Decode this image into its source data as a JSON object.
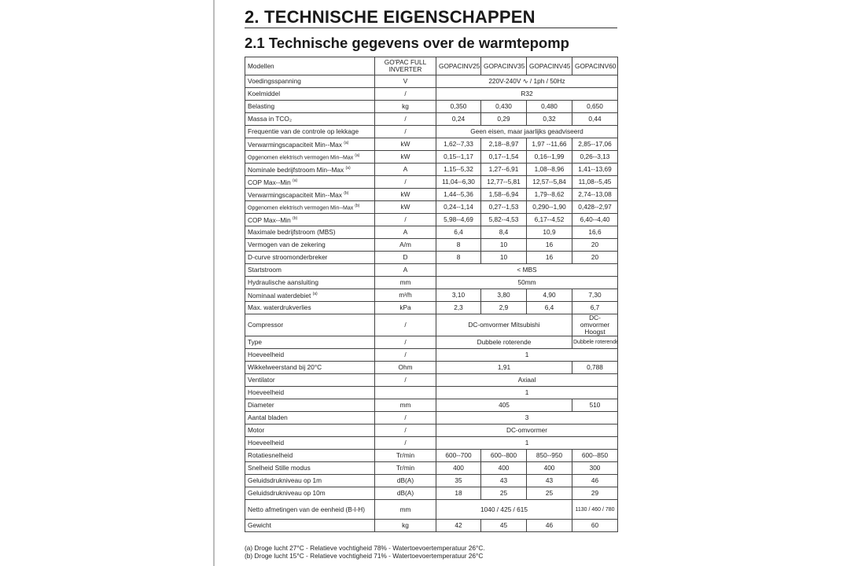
{
  "heading": "2. TECHNISCHE EIGENSCHAPPEN",
  "subheading": "2.1 Technische gegevens over de warmtepomp",
  "table": {
    "header": {
      "label": "Modellen",
      "unit": "GO'PAC FULL INVERTER",
      "models": [
        "GOPACINV25",
        "GOPACINV35",
        "GOPACINV45",
        "GOPACINV60"
      ]
    },
    "rows": [
      {
        "label": "Voedingsspanning",
        "unit": "V",
        "cells": [
          {
            "v": "220V-240V ∿ / 1ph / 50Hz",
            "span": 4
          }
        ]
      },
      {
        "label": "Koelmiddel",
        "unit": "/",
        "cells": [
          {
            "v": "R32",
            "span": 4
          }
        ]
      },
      {
        "label": "Belasting",
        "unit": "kg",
        "cells": [
          {
            "v": "0,350"
          },
          {
            "v": "0,430"
          },
          {
            "v": "0,480"
          },
          {
            "v": "0,650"
          }
        ]
      },
      {
        "label": "Massa in TCO₂",
        "unit": "/",
        "cells": [
          {
            "v": "0,24"
          },
          {
            "v": "0,29"
          },
          {
            "v": "0,32"
          },
          {
            "v": "0,44"
          }
        ]
      },
      {
        "label": "Frequentie van de controle op lekkage",
        "unit": "/",
        "cells": [
          {
            "v": "Geen eisen, maar jaarlijks geadviseerd",
            "span": 4
          }
        ]
      },
      {
        "label": "Verwarmingscapaciteit Min--Max",
        "note": "(a)",
        "unit": "kW",
        "cells": [
          {
            "v": "1,62--7,33"
          },
          {
            "v": "2,18--8,97"
          },
          {
            "v": "1,97 --11,66"
          },
          {
            "v": "2,85--17,06"
          }
        ]
      },
      {
        "label": "Opgenomen elektrisch vermogen Min--Max",
        "note": "(a)",
        "small": true,
        "unit": "kW",
        "cells": [
          {
            "v": "0,15--1,17"
          },
          {
            "v": "0,17--1,54"
          },
          {
            "v": "0,16--1,99"
          },
          {
            "v": "0,26--3,13"
          }
        ]
      },
      {
        "label": "Nominale bedrijfstroom Min--Max",
        "note": "(a)",
        "unit": "A",
        "cells": [
          {
            "v": "1,15--5,32"
          },
          {
            "v": "1,27--6,91"
          },
          {
            "v": "1,08--8,96"
          },
          {
            "v": "1,41--13,69"
          }
        ]
      },
      {
        "label": "COP Max--Min",
        "note": "(a)",
        "unit": "/",
        "cells": [
          {
            "v": "11,04--6,30"
          },
          {
            "v": "12,77--5,81"
          },
          {
            "v": "12,57--5,84"
          },
          {
            "v": "11,08--5,45"
          }
        ]
      },
      {
        "label": "Verwarmingscapaciteit Min--Max",
        "note": "(b)",
        "unit": "kW",
        "cells": [
          {
            "v": "1,44--5,36"
          },
          {
            "v": "1,58--6,94"
          },
          {
            "v": "1,79--8,62"
          },
          {
            "v": "2,74--13,08"
          }
        ]
      },
      {
        "label": "Opgenomen elektrisch vermogen Min--Max",
        "note": "(b)",
        "small": true,
        "unit": "kW",
        "cells": [
          {
            "v": "0,24--1,14"
          },
          {
            "v": "0,27--1,53"
          },
          {
            "v": "0,290--1,90"
          },
          {
            "v": "0,428--2,97"
          }
        ]
      },
      {
        "label": "COP Max--Min",
        "note": "(b)",
        "unit": "/",
        "cells": [
          {
            "v": "5,98--4,69"
          },
          {
            "v": "5,82--4,53"
          },
          {
            "v": "6,17--4,52"
          },
          {
            "v": "6,40--4,40"
          }
        ]
      },
      {
        "label": "Maximale bedrijfstroom (MBS)",
        "unit": "A",
        "cells": [
          {
            "v": "6,4"
          },
          {
            "v": "8,4"
          },
          {
            "v": "10,9"
          },
          {
            "v": "16,6"
          }
        ]
      },
      {
        "label": "Vermogen van de zekering",
        "unit": "A/m",
        "cells": [
          {
            "v": "8"
          },
          {
            "v": "10"
          },
          {
            "v": "16"
          },
          {
            "v": "20"
          }
        ]
      },
      {
        "label": "D-curve stroomonderbreker",
        "unit": "D",
        "cells": [
          {
            "v": "8"
          },
          {
            "v": "10"
          },
          {
            "v": "16"
          },
          {
            "v": "20"
          }
        ]
      },
      {
        "label": "Startstroom",
        "unit": "A",
        "cells": [
          {
            "v": "< MBS",
            "span": 4
          }
        ]
      },
      {
        "label": "Hydraulische aansluiting",
        "unit": "mm",
        "cells": [
          {
            "v": "50mm",
            "span": 4
          }
        ]
      },
      {
        "label": "Nominaal waterdebiet",
        "note": "(a)",
        "unit": "m³/h",
        "cells": [
          {
            "v": "3,10"
          },
          {
            "v": "3,80"
          },
          {
            "v": "4,90"
          },
          {
            "v": "7,30"
          }
        ]
      },
      {
        "label": "Max. waterdrukverlies",
        "unit": "kPa",
        "cells": [
          {
            "v": "2,3"
          },
          {
            "v": "2,9"
          },
          {
            "v": "6,4"
          },
          {
            "v": "6,7"
          }
        ]
      },
      {
        "label": "Compressor",
        "unit": "/",
        "tall": true,
        "cells": [
          {
            "v": "DC-omvormer Mitsubishi",
            "span": 3
          },
          {
            "v": "DC-omvormer Hoogst",
            "wrap": true
          }
        ]
      },
      {
        "label": "Type",
        "unit": "/",
        "cells": [
          {
            "v": "Dubbele roterende",
            "span": 3
          },
          {
            "v": "Dubbele roterende",
            "small": true
          }
        ]
      },
      {
        "label": "Hoeveelheid",
        "unit": "/",
        "cells": [
          {
            "v": "1",
            "span": 4
          }
        ]
      },
      {
        "label": "Wikkelweerstand bij 20°C",
        "unit": "Ohm",
        "cells": [
          {
            "v": "1,91",
            "span": 3
          },
          {
            "v": "0,788"
          }
        ]
      },
      {
        "label": "Ventilator",
        "unit": "/",
        "cells": [
          {
            "v": "Axiaal",
            "span": 4
          }
        ]
      },
      {
        "label": "Hoeveelheid",
        "unit": "",
        "cells": [
          {
            "v": "1",
            "span": 4
          }
        ]
      },
      {
        "label": "Diameter",
        "unit": "mm",
        "cells": [
          {
            "v": "405",
            "span": 3
          },
          {
            "v": "510"
          }
        ]
      },
      {
        "label": "Aantal bladen",
        "unit": "/",
        "cells": [
          {
            "v": "3",
            "span": 4
          }
        ]
      },
      {
        "label": "Motor",
        "unit": "/",
        "cells": [
          {
            "v": "DC-omvormer",
            "span": 4
          }
        ]
      },
      {
        "label": "Hoeveelheid",
        "unit": "/",
        "cells": [
          {
            "v": "1",
            "span": 4
          }
        ]
      },
      {
        "label": "Rotatiesnelheid",
        "unit": "Tr/min",
        "cells": [
          {
            "v": "600--700"
          },
          {
            "v": "600--800"
          },
          {
            "v": "850--950"
          },
          {
            "v": "600--850"
          }
        ]
      },
      {
        "label": "Snelheid Stille modus",
        "unit": "Tr/min",
        "cells": [
          {
            "v": "400"
          },
          {
            "v": "400"
          },
          {
            "v": "400"
          },
          {
            "v": "300"
          }
        ]
      },
      {
        "label": "Geluidsdrukniveau op 1m",
        "unit": "dB(A)",
        "cells": [
          {
            "v": "35"
          },
          {
            "v": "43"
          },
          {
            "v": "43"
          },
          {
            "v": "46"
          }
        ]
      },
      {
        "label": "Geluidsdrukniveau op 10m",
        "unit": "dB(A)",
        "cells": [
          {
            "v": "18"
          },
          {
            "v": "25"
          },
          {
            "v": "25"
          },
          {
            "v": "29"
          }
        ]
      },
      {
        "label": "Netto afmetingen van de eenheid (B-l-H)",
        "unit": "mm",
        "tall": true,
        "cells": [
          {
            "v": "1040 / 425 / 615",
            "span": 3
          },
          {
            "v": "1130 / 460 / 780",
            "small": true
          }
        ]
      },
      {
        "label": "Gewicht",
        "unit": "kg",
        "cells": [
          {
            "v": "42"
          },
          {
            "v": "45"
          },
          {
            "v": "46"
          },
          {
            "v": "60"
          }
        ]
      }
    ]
  },
  "footnotes": [
    "(a) Droge lucht 27°C - Relatieve vochtigheid 78% - Watertoevoertemperatuur 26°C.",
    "(b) Droge lucht 15°C - Relatieve vochtigheid 71% - Watertoevoertemperatuur 26°C"
  ]
}
